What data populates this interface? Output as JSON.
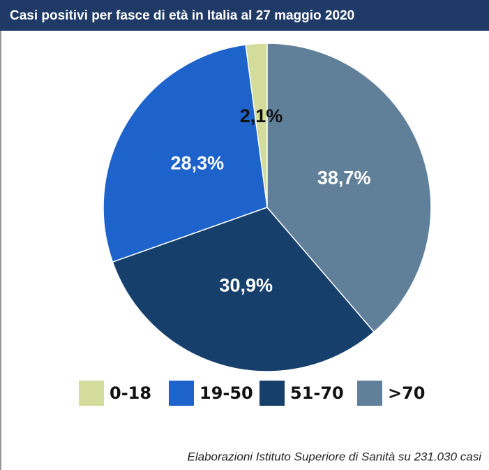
{
  "chart_data": {
    "type": "pie",
    "title": "Casi positivi per fasce di età in Italia al 27 maggio 2020",
    "categories": [
      "0-18",
      "19-50",
      "51-70",
      ">70"
    ],
    "series": [
      {
        "name": "0-18",
        "color": "#d3dc9a"
      },
      {
        "name": "19-50",
        "color": "#1e62cc"
      },
      {
        "name": "51-70",
        "color": "#173f6c"
      },
      {
        "name": ">70",
        "color": "#60809a"
      }
    ],
    "values": [
      2.1,
      28.3,
      30.9,
      38.7
    ],
    "value_labels": [
      "2,1%",
      "28,3%",
      "30,9%",
      "38,7%"
    ],
    "source": "Elaborazioni Istituto Superiore di Sanità su 231.030 casi"
  }
}
